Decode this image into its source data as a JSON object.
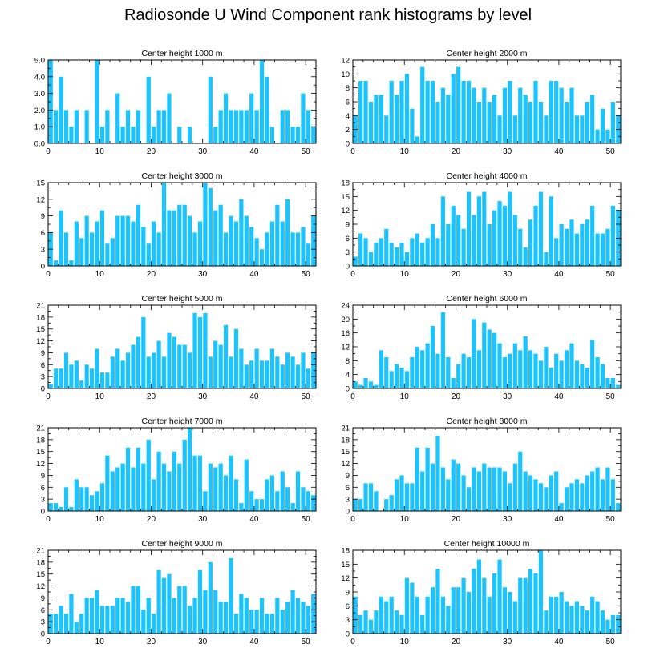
{
  "title": "Radiosonde U Wind Component rank histograms by level",
  "colors": {
    "bar": "#1cc4ff",
    "bar_edge": "#ffffff",
    "axis": "#000000"
  },
  "chart_data": [
    {
      "type": "bar",
      "title": "Center height 1000 m",
      "xlabel": "",
      "ylabel": "",
      "xlim": [
        0,
        52
      ],
      "xticks": [
        "0",
        "10",
        "20",
        "30",
        "40",
        "50"
      ],
      "ylim": [
        0,
        5
      ],
      "yticks": [
        "0.0",
        "1.0",
        "2.0",
        "3.0",
        "4.0",
        "5.0"
      ],
      "values": [
        5,
        2,
        4,
        2,
        1,
        2,
        0,
        2,
        0,
        5,
        1,
        2,
        0,
        3,
        1,
        2,
        1,
        2,
        0,
        4,
        1,
        2,
        2,
        3,
        0,
        1,
        0,
        1,
        0,
        0,
        0,
        4,
        1,
        2,
        3,
        2,
        2,
        2,
        2,
        3,
        2,
        5,
        4,
        1,
        0,
        2,
        2,
        1,
        1,
        3,
        2,
        1
      ]
    },
    {
      "type": "bar",
      "title": "Center height 2000 m",
      "xlabel": "",
      "ylabel": "",
      "xlim": [
        0,
        52
      ],
      "xticks": [
        "0",
        "10",
        "20",
        "30",
        "40",
        "50"
      ],
      "ylim": [
        0,
        12
      ],
      "yticks": [
        "0",
        "2",
        "4",
        "6",
        "8",
        "10",
        "12"
      ],
      "values": [
        4,
        9,
        9,
        6,
        7,
        7,
        4,
        9,
        7,
        9,
        10,
        5,
        1,
        11,
        9,
        9,
        6,
        8,
        7,
        10,
        11,
        9,
        9,
        8,
        6,
        8,
        6,
        7,
        4,
        8,
        9,
        4,
        8,
        7,
        6,
        9,
        6,
        4,
        9,
        9,
        8,
        6,
        8,
        4,
        4,
        6,
        7,
        2,
        5,
        2,
        6,
        4
      ]
    },
    {
      "type": "bar",
      "title": "Center height 3000 m",
      "xlabel": "",
      "ylabel": "",
      "xlim": [
        0,
        52
      ],
      "xticks": [
        "0",
        "10",
        "20",
        "30",
        "40",
        "50"
      ],
      "ylim": [
        0,
        15
      ],
      "yticks": [
        "0",
        "3",
        "6",
        "9",
        "12",
        "15"
      ],
      "values": [
        6,
        1,
        10,
        6,
        1,
        8,
        5,
        9,
        6,
        8,
        10,
        4,
        5,
        9,
        9,
        9,
        8,
        11,
        7,
        4,
        8,
        6,
        15,
        10,
        10,
        11,
        11,
        9,
        6,
        8,
        15,
        14,
        10,
        11,
        6,
        9,
        8,
        12,
        9,
        7,
        5,
        3,
        6,
        8,
        11,
        8,
        12,
        6,
        6,
        7,
        4,
        9
      ]
    },
    {
      "type": "bar",
      "title": "Center height 4000 m",
      "xlabel": "",
      "ylabel": "",
      "xlim": [
        0,
        52
      ],
      "xticks": [
        "0",
        "10",
        "20",
        "30",
        "40",
        "50"
      ],
      "ylim": [
        0,
        18
      ],
      "yticks": [
        "0",
        "3",
        "6",
        "9",
        "12",
        "15",
        "18"
      ],
      "values": [
        2,
        7,
        6,
        3,
        5,
        6,
        8,
        5,
        4,
        5,
        3,
        6,
        7,
        5,
        6,
        9,
        6,
        15,
        9,
        13,
        11,
        8,
        16,
        11,
        15,
        16,
        9,
        12,
        14,
        13,
        16,
        11,
        8,
        4,
        10,
        13,
        16,
        3,
        15,
        6,
        9,
        8,
        10,
        7,
        9,
        10,
        13,
        7,
        7,
        8,
        13,
        12
      ]
    },
    {
      "type": "bar",
      "title": "Center height 5000 m",
      "xlabel": "",
      "ylabel": "",
      "xlim": [
        0,
        52
      ],
      "xticks": [
        "0",
        "10",
        "20",
        "30",
        "40",
        "50"
      ],
      "ylim": [
        0,
        21
      ],
      "yticks": [
        "0",
        "3",
        "6",
        "9",
        "12",
        "15",
        "18",
        "21"
      ],
      "values": [
        1,
        5,
        5,
        9,
        6,
        7,
        2,
        6,
        5,
        10,
        4,
        4,
        8,
        10,
        7,
        9,
        11,
        13,
        18,
        8,
        9,
        12,
        8,
        14,
        13,
        11,
        11,
        9,
        19,
        18,
        19,
        8,
        12,
        11,
        16,
        8,
        15,
        10,
        6,
        7,
        10,
        7,
        7,
        10,
        8,
        6,
        9,
        8,
        6,
        9,
        5,
        9
      ]
    },
    {
      "type": "bar",
      "title": "Center height 6000 m",
      "xlabel": "",
      "ylabel": "",
      "xlim": [
        0,
        52
      ],
      "xticks": [
        "0",
        "10",
        "20",
        "30",
        "40",
        "50"
      ],
      "ylim": [
        0,
        24
      ],
      "yticks": [
        "0",
        "4",
        "8",
        "12",
        "16",
        "20",
        "24"
      ],
      "values": [
        2,
        1,
        3,
        2,
        1,
        11,
        9,
        5,
        7,
        6,
        5,
        9,
        12,
        11,
        13,
        18,
        10,
        22,
        9,
        3,
        7,
        10,
        9,
        20,
        11,
        19,
        17,
        16,
        13,
        9,
        10,
        13,
        11,
        15,
        11,
        10,
        8,
        12,
        6,
        10,
        8,
        11,
        13,
        8,
        7,
        6,
        14,
        9,
        7,
        3,
        3,
        1
      ]
    },
    {
      "type": "bar",
      "title": "Center height 7000 m",
      "xlabel": "",
      "ylabel": "",
      "xlim": [
        0,
        52
      ],
      "xticks": [
        "0",
        "10",
        "20",
        "30",
        "40",
        "50"
      ],
      "ylim": [
        0,
        21
      ],
      "yticks": [
        "0",
        "3",
        "6",
        "9",
        "12",
        "15",
        "18",
        "21"
      ],
      "values": [
        2,
        2,
        1,
        6,
        1,
        8,
        6,
        6,
        4,
        5,
        7,
        14,
        10,
        11,
        12,
        16,
        11,
        16,
        12,
        18,
        8,
        15,
        12,
        10,
        15,
        12,
        18,
        21,
        14,
        14,
        5,
        12,
        11,
        12,
        9,
        14,
        8,
        2,
        13,
        5,
        3,
        3,
        8,
        9,
        5,
        10,
        6,
        2,
        10,
        6,
        5,
        4
      ]
    },
    {
      "type": "bar",
      "title": "Center height 8000 m",
      "xlabel": "",
      "ylabel": "",
      "xlim": [
        0,
        52
      ],
      "xticks": [
        "0",
        "10",
        "20",
        "30",
        "40",
        "50"
      ],
      "ylim": [
        0,
        21
      ],
      "yticks": [
        "0",
        "3",
        "6",
        "9",
        "12",
        "15",
        "18",
        "21"
      ],
      "values": [
        3,
        3,
        7,
        7,
        5,
        0,
        3,
        4,
        8,
        9,
        7,
        7,
        16,
        10,
        16,
        12,
        19,
        11,
        8,
        13,
        12,
        9,
        6,
        11,
        10,
        12,
        11,
        11,
        11,
        10,
        7,
        12,
        15,
        10,
        9,
        8,
        7,
        6,
        9,
        10,
        2,
        6,
        7,
        8,
        7,
        9,
        10,
        11,
        8,
        11,
        8,
        2
      ]
    },
    {
      "type": "bar",
      "title": "Center height 9000 m",
      "xlabel": "",
      "ylabel": "",
      "xlim": [
        0,
        52
      ],
      "xticks": [
        "0",
        "10",
        "20",
        "30",
        "40",
        "50"
      ],
      "ylim": [
        0,
        21
      ],
      "yticks": [
        "0",
        "3",
        "6",
        "9",
        "12",
        "15",
        "18",
        "21"
      ],
      "values": [
        5,
        5,
        7,
        5,
        10,
        3,
        5,
        9,
        9,
        11,
        7,
        7,
        7,
        9,
        9,
        8,
        12,
        12,
        6,
        9,
        5,
        16,
        14,
        15,
        9,
        12,
        12,
        7,
        9,
        16,
        11,
        18,
        11,
        8,
        8,
        19,
        5,
        10,
        9,
        6,
        6,
        9,
        5,
        5,
        9,
        6,
        8,
        11,
        9,
        8,
        7,
        10
      ]
    },
    {
      "type": "bar",
      "title": "Center height 10000 m",
      "xlabel": "",
      "ylabel": "",
      "xlim": [
        0,
        52
      ],
      "xticks": [
        "0",
        "10",
        "20",
        "30",
        "40",
        "50"
      ],
      "ylim": [
        0,
        18
      ],
      "yticks": [
        "0",
        "3",
        "6",
        "9",
        "12",
        "15",
        "18"
      ],
      "values": [
        8,
        4,
        5,
        3,
        5,
        8,
        7,
        8,
        5,
        4,
        12,
        11,
        8,
        4,
        8,
        10,
        14,
        8,
        6,
        10,
        10,
        12,
        9,
        14,
        16,
        12,
        8,
        13,
        16,
        10,
        9,
        7,
        12,
        12,
        14,
        13,
        18,
        5,
        8,
        8,
        9,
        7,
        6,
        7,
        6,
        5,
        8,
        7,
        5,
        3,
        4,
        4
      ]
    }
  ]
}
